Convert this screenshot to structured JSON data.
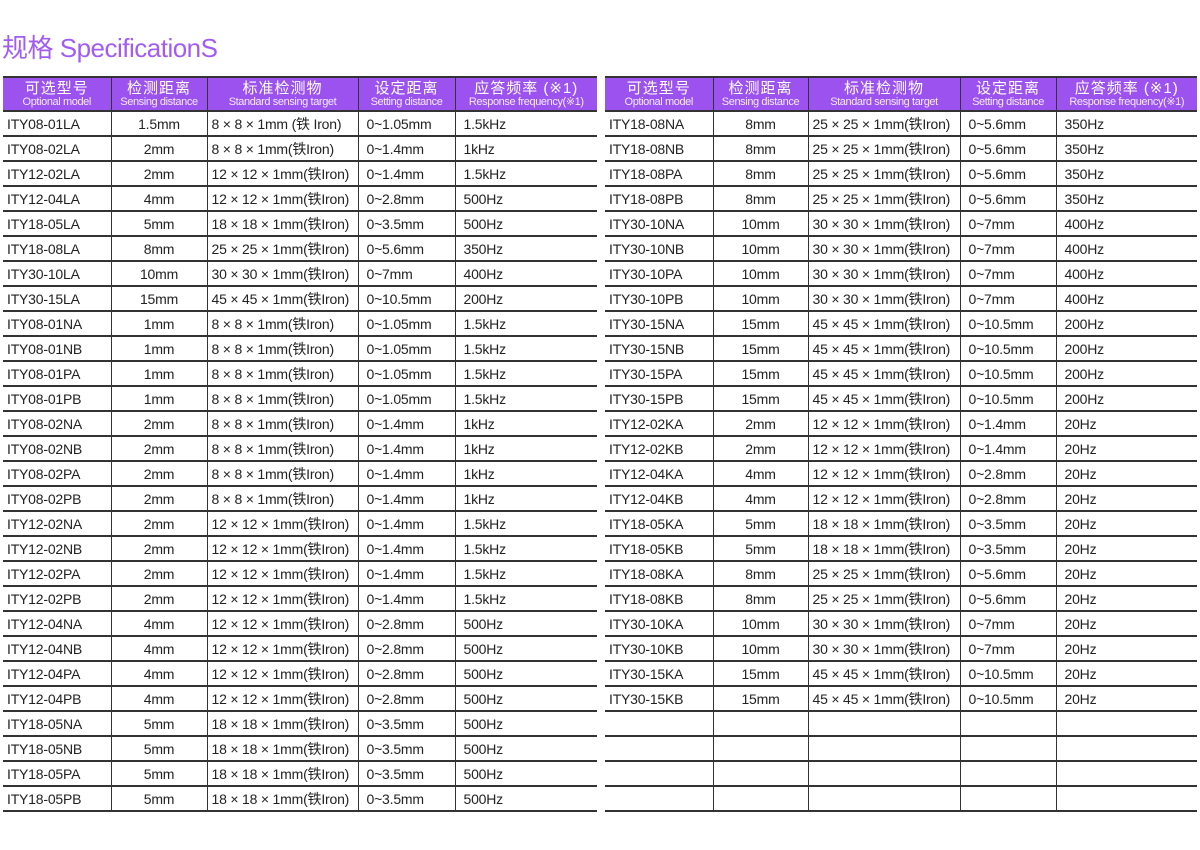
{
  "page": {
    "title": "规格 SpecificationS"
  },
  "colors": {
    "header_bg": "#9c52ef",
    "title": "#a35cf2"
  },
  "columns": [
    {
      "zh": "可选型号",
      "en": "Optional model"
    },
    {
      "zh": "检测距离",
      "en": "Sensing distance"
    },
    {
      "zh": "标准检测物",
      "en": "Standard sensing target"
    },
    {
      "zh": "设定距离",
      "en": "Setting distance"
    },
    {
      "zh": "应答频率 (※1)",
      "en": "Response frequency(※1)"
    }
  ],
  "left_table": {
    "rows": [
      [
        "ITY08-01LA",
        "1.5mm",
        "8 × 8 × 1mm (铁 Iron)",
        "0~1.05mm",
        "1.5kHz"
      ],
      [
        "ITY08-02LA",
        "2mm",
        "8 × 8 × 1mm(铁Iron)",
        "0~1.4mm",
        "1kHz"
      ],
      [
        "ITY12-02LA",
        "2mm",
        "12 × 12 × 1mm(铁Iron)",
        "0~1.4mm",
        "1.5kHz"
      ],
      [
        "ITY12-04LA",
        "4mm",
        "12 × 12 × 1mm(铁Iron)",
        "0~2.8mm",
        "500Hz"
      ],
      [
        "ITY18-05LA",
        "5mm",
        "18 × 18 × 1mm(铁Iron)",
        "0~3.5mm",
        "500Hz"
      ],
      [
        "ITY18-08LA",
        "8mm",
        "25 × 25 × 1mm(铁Iron)",
        "0~5.6mm",
        "350Hz"
      ],
      [
        "ITY30-10LA",
        "10mm",
        "30 × 30 × 1mm(铁Iron)",
        "0~7mm",
        "400Hz"
      ],
      [
        "ITY30-15LA",
        "15mm",
        "45 × 45 × 1mm(铁Iron)",
        "0~10.5mm",
        "200Hz"
      ],
      [
        "ITY08-01NA",
        "1mm",
        "8 × 8 × 1mm(铁Iron)",
        "0~1.05mm",
        "1.5kHz"
      ],
      [
        "ITY08-01NB",
        "1mm",
        "8 × 8 × 1mm(铁Iron)",
        "0~1.05mm",
        "1.5kHz"
      ],
      [
        "ITY08-01PA",
        "1mm",
        "8 × 8 × 1mm(铁Iron)",
        "0~1.05mm",
        "1.5kHz"
      ],
      [
        "ITY08-01PB",
        "1mm",
        "8 × 8 × 1mm(铁Iron)",
        "0~1.05mm",
        "1.5kHz"
      ],
      [
        "ITY08-02NA",
        "2mm",
        "8 × 8 × 1mm(铁Iron)",
        "0~1.4mm",
        "1kHz"
      ],
      [
        "ITY08-02NB",
        "2mm",
        "8 × 8 × 1mm(铁Iron)",
        "0~1.4mm",
        "1kHz"
      ],
      [
        "ITY08-02PA",
        "2mm",
        "8 × 8 × 1mm(铁Iron)",
        "0~1.4mm",
        "1kHz"
      ],
      [
        "ITY08-02PB",
        "2mm",
        "8 × 8 × 1mm(铁Iron)",
        "0~1.4mm",
        "1kHz"
      ],
      [
        "ITY12-02NA",
        "2mm",
        "12 × 12 × 1mm(铁Iron)",
        "0~1.4mm",
        "1.5kHz"
      ],
      [
        "ITY12-02NB",
        "2mm",
        "12 × 12 × 1mm(铁Iron)",
        "0~1.4mm",
        "1.5kHz"
      ],
      [
        "ITY12-02PA",
        "2mm",
        "12 × 12 × 1mm(铁Iron)",
        "0~1.4mm",
        "1.5kHz"
      ],
      [
        "ITY12-02PB",
        "2mm",
        "12 × 12 × 1mm(铁Iron)",
        "0~1.4mm",
        "1.5kHz"
      ],
      [
        "ITY12-04NA",
        "4mm",
        "12 × 12 × 1mm(铁Iron)",
        "0~2.8mm",
        "500Hz"
      ],
      [
        "ITY12-04NB",
        "4mm",
        "12 × 12 × 1mm(铁Iron)",
        "0~2.8mm",
        "500Hz"
      ],
      [
        "ITY12-04PA",
        "4mm",
        "12 × 12 × 1mm(铁Iron)",
        "0~2.8mm",
        "500Hz"
      ],
      [
        "ITY12-04PB",
        "4mm",
        "12 × 12 × 1mm(铁Iron)",
        "0~2.8mm",
        "500Hz"
      ],
      [
        "ITY18-05NA",
        "5mm",
        "18 × 18 × 1mm(铁Iron)",
        "0~3.5mm",
        "500Hz"
      ],
      [
        "ITY18-05NB",
        "5mm",
        "18 × 18 × 1mm(铁Iron)",
        "0~3.5mm",
        "500Hz"
      ],
      [
        "ITY18-05PA",
        "5mm",
        "18 × 18 × 1mm(铁Iron)",
        "0~3.5mm",
        "500Hz"
      ],
      [
        "ITY18-05PB",
        "5mm",
        "18 × 18 × 1mm(铁Iron)",
        "0~3.5mm",
        "500Hz"
      ]
    ]
  },
  "right_table": {
    "rows": [
      [
        "ITY18-08NA",
        "8mm",
        "25 × 25 × 1mm(铁Iron)",
        "0~5.6mm",
        "350Hz"
      ],
      [
        "ITY18-08NB",
        "8mm",
        "25 × 25 × 1mm(铁Iron)",
        "0~5.6mm",
        "350Hz"
      ],
      [
        "ITY18-08PA",
        "8mm",
        "25 × 25 × 1mm(铁Iron)",
        "0~5.6mm",
        "350Hz"
      ],
      [
        "ITY18-08PB",
        "8mm",
        "25 × 25 × 1mm(铁Iron)",
        "0~5.6mm",
        "350Hz"
      ],
      [
        "ITY30-10NA",
        "10mm",
        "30 × 30 × 1mm(铁Iron)",
        "0~7mm",
        "400Hz"
      ],
      [
        "ITY30-10NB",
        "10mm",
        "30 × 30 × 1mm(铁Iron)",
        "0~7mm",
        "400Hz"
      ],
      [
        "ITY30-10PA",
        "10mm",
        "30 × 30 × 1mm(铁Iron)",
        "0~7mm",
        "400Hz"
      ],
      [
        "ITY30-10PB",
        "10mm",
        "30 × 30 × 1mm(铁Iron)",
        "0~7mm",
        "400Hz"
      ],
      [
        "ITY30-15NA",
        "15mm",
        "45 × 45 × 1mm(铁Iron)",
        "0~10.5mm",
        "200Hz"
      ],
      [
        "ITY30-15NB",
        "15mm",
        "45 × 45 × 1mm(铁Iron)",
        "0~10.5mm",
        "200Hz"
      ],
      [
        "ITY30-15PA",
        "15mm",
        "45 × 45 × 1mm(铁Iron)",
        "0~10.5mm",
        "200Hz"
      ],
      [
        "ITY30-15PB",
        "15mm",
        "45 × 45 × 1mm(铁Iron)",
        "0~10.5mm",
        "200Hz"
      ],
      [
        "ITY12-02KA",
        "2mm",
        "12 × 12 × 1mm(铁Iron)",
        "0~1.4mm",
        "20Hz"
      ],
      [
        "ITY12-02KB",
        "2mm",
        "12 × 12 × 1mm(铁Iron)",
        "0~1.4mm",
        "20Hz"
      ],
      [
        "ITY12-04KA",
        "4mm",
        "12 × 12 × 1mm(铁Iron)",
        "0~2.8mm",
        "20Hz"
      ],
      [
        "ITY12-04KB",
        "4mm",
        "12 × 12 × 1mm(铁Iron)",
        "0~2.8mm",
        "20Hz"
      ],
      [
        "ITY18-05KA",
        "5mm",
        "18 × 18 × 1mm(铁Iron)",
        "0~3.5mm",
        "20Hz"
      ],
      [
        "ITY18-05KB",
        "5mm",
        "18 × 18 × 1mm(铁Iron)",
        "0~3.5mm",
        "20Hz"
      ],
      [
        "ITY18-08KA",
        "8mm",
        "25 × 25 × 1mm(铁Iron)",
        "0~5.6mm",
        "20Hz"
      ],
      [
        "ITY18-08KB",
        "8mm",
        "25 × 25 × 1mm(铁Iron)",
        "0~5.6mm",
        "20Hz"
      ],
      [
        "ITY30-10KA",
        "10mm",
        "30 × 30 × 1mm(铁Iron)",
        "0~7mm",
        "20Hz"
      ],
      [
        "ITY30-10KB",
        "10mm",
        "30 × 30 × 1mm(铁Iron)",
        "0~7mm",
        "20Hz"
      ],
      [
        "ITY30-15KA",
        "15mm",
        "45 × 45 × 1mm(铁Iron)",
        "0~10.5mm",
        "20Hz"
      ],
      [
        "ITY30-15KB",
        "15mm",
        "45 × 45 × 1mm(铁Iron)",
        "0~10.5mm",
        "20Hz"
      ],
      [
        "",
        "",
        "",
        "",
        ""
      ],
      [
        "",
        "",
        "",
        "",
        ""
      ],
      [
        "",
        "",
        "",
        "",
        ""
      ],
      [
        "",
        "",
        "",
        "",
        ""
      ]
    ]
  }
}
